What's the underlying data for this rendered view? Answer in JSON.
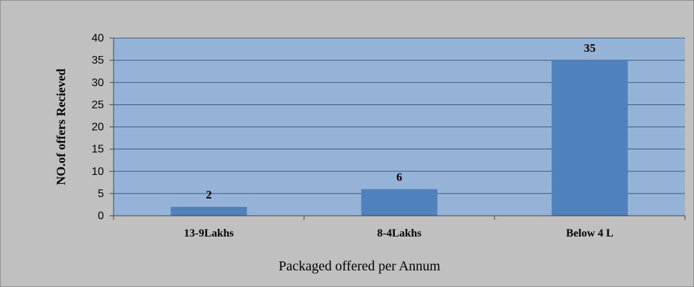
{
  "chart_data": {
    "type": "bar",
    "categories": [
      "13-9Lakhs",
      "8-4Lakhs",
      "Below 4 L"
    ],
    "values": [
      2,
      6,
      35
    ],
    "data_labels": [
      "2",
      "6",
      "35"
    ],
    "ylabel": "NO.of offers  Recieved",
    "xlabel": "Packaged offered per Annum",
    "ylim": [
      0,
      40
    ],
    "yticks": [
      0,
      5,
      10,
      15,
      20,
      25,
      30,
      35,
      40
    ],
    "grid": true,
    "legend": "none"
  },
  "colors": {
    "frame_background": "#c0c0c0",
    "plot_background": "#95b3d7",
    "bar": "#4f81bd",
    "gridline": "#1f3a5f"
  }
}
